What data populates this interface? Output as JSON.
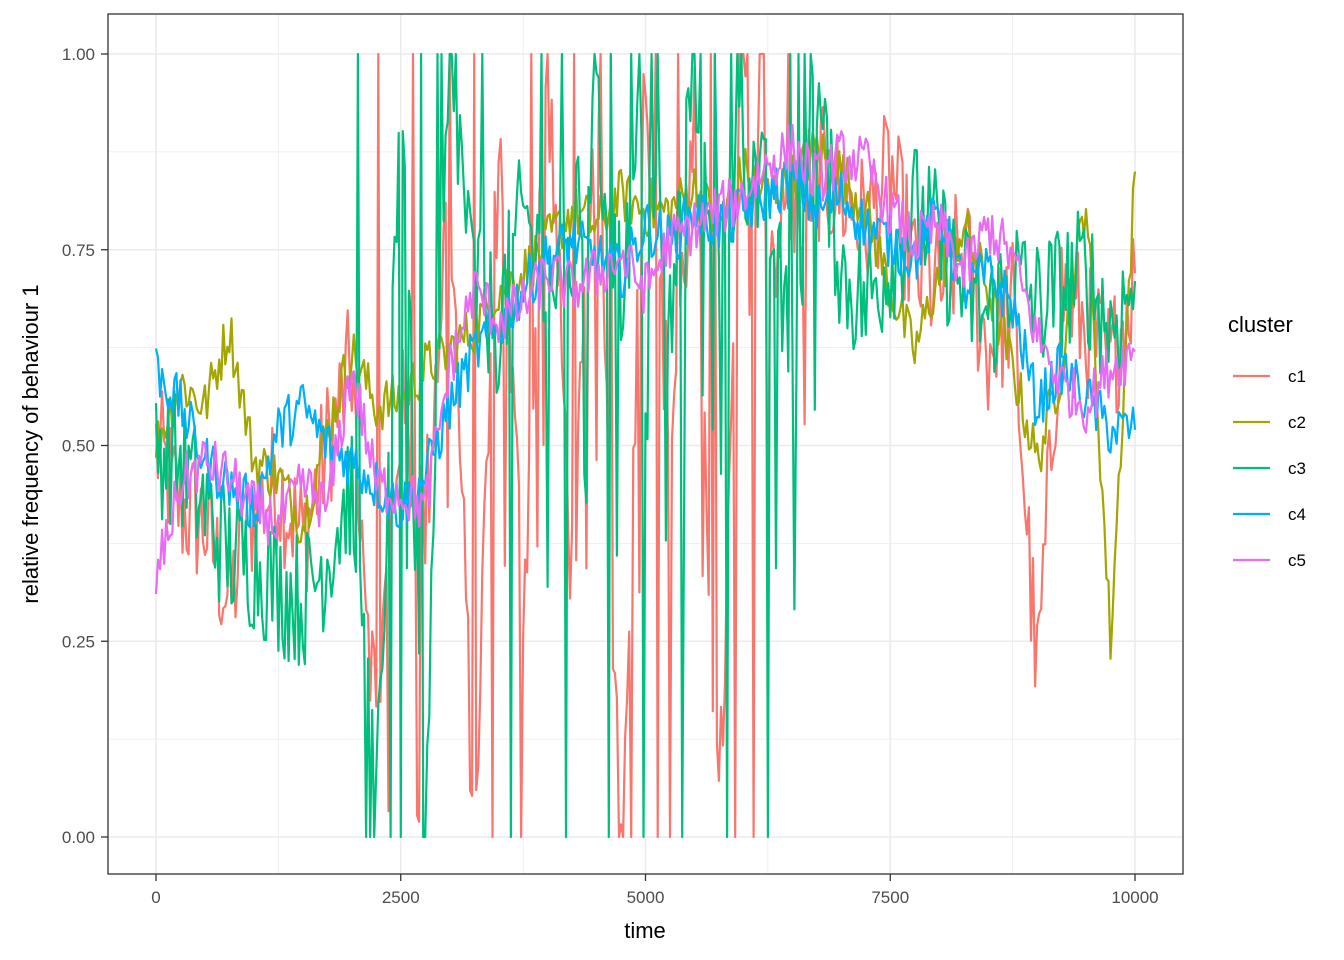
{
  "chart_data": {
    "type": "line",
    "title": "",
    "xlabel": "time",
    "ylabel": "relative frequency of behaviour 1",
    "xlim": [
      -500,
      10500
    ],
    "ylim": [
      -0.05,
      1.05
    ],
    "x_ticks": [
      0,
      2500,
      5000,
      7500,
      10000
    ],
    "x_tick_labels": [
      "0",
      "2500",
      "5000",
      "7500",
      "10000"
    ],
    "y_ticks": [
      0,
      0.25,
      0.5,
      0.75,
      1.0
    ],
    "y_tick_labels": [
      "0.00",
      "0.25",
      "0.50",
      "0.75",
      "1.00"
    ],
    "grid": true,
    "legend_position": "right",
    "legend_title": "cluster",
    "x": [
      0,
      250,
      500,
      750,
      1000,
      1250,
      1500,
      1750,
      2000,
      2250,
      2500,
      2750,
      3000,
      3250,
      3500,
      3750,
      4000,
      4250,
      4500,
      4750,
      5000,
      5250,
      5500,
      5750,
      6000,
      6250,
      6500,
      6750,
      7000,
      7250,
      7500,
      7750,
      8000,
      8250,
      8500,
      8750,
      9000,
      9250,
      9500,
      9750,
      10000
    ],
    "series": [
      {
        "name": "c1",
        "color": "#F8766D",
        "values": [
          0.5,
          0.42,
          0.4,
          0.3,
          0.42,
          0.45,
          0.38,
          0.5,
          0.6,
          0.15,
          0.55,
          0.4,
          0.85,
          0.0,
          0.9,
          0.3,
          1.0,
          0.33,
          0.9,
          0.0,
          1.0,
          0.5,
          0.9,
          0.0,
          1.0,
          0.75,
          0.8,
          0.85,
          0.82,
          0.78,
          0.85,
          0.72,
          0.7,
          0.75,
          0.62,
          0.68,
          0.2,
          0.7,
          0.65,
          0.6,
          0.72
        ]
      },
      {
        "name": "c2",
        "color": "#A3A500",
        "values": [
          0.5,
          0.58,
          0.55,
          0.65,
          0.48,
          0.46,
          0.4,
          0.52,
          0.62,
          0.55,
          0.56,
          0.6,
          0.62,
          0.65,
          0.7,
          0.72,
          0.76,
          0.8,
          0.78,
          0.82,
          0.8,
          0.8,
          0.83,
          0.78,
          0.85,
          0.82,
          0.84,
          0.88,
          0.85,
          0.8,
          0.7,
          0.62,
          0.72,
          0.78,
          0.7,
          0.6,
          0.48,
          0.6,
          0.82,
          0.25,
          0.85
        ]
      },
      {
        "name": "c3",
        "color": "#00BF7D",
        "values": [
          0.5,
          0.48,
          0.42,
          0.36,
          0.35,
          0.32,
          0.3,
          0.36,
          0.45,
          0.0,
          1.0,
          0.0,
          1.0,
          0.7,
          0.65,
          0.8,
          0.7,
          0.75,
          0.9,
          0.7,
          0.95,
          0.65,
          1.0,
          0.75,
          0.88,
          0.8,
          0.6,
          0.95,
          0.72,
          0.68,
          0.74,
          0.8,
          0.76,
          0.7,
          0.66,
          0.72,
          0.68,
          0.7,
          0.72,
          0.65,
          0.71
        ]
      },
      {
        "name": "c4",
        "color": "#00B0F6",
        "values": [
          0.6,
          0.55,
          0.48,
          0.45,
          0.42,
          0.52,
          0.55,
          0.5,
          0.48,
          0.45,
          0.42,
          0.46,
          0.55,
          0.62,
          0.65,
          0.7,
          0.74,
          0.76,
          0.74,
          0.72,
          0.78,
          0.76,
          0.8,
          0.78,
          0.8,
          0.82,
          0.84,
          0.8,
          0.82,
          0.78,
          0.76,
          0.74,
          0.8,
          0.7,
          0.72,
          0.68,
          0.55,
          0.6,
          0.56,
          0.52,
          0.52
        ]
      },
      {
        "name": "c5",
        "color": "#E76BF3",
        "values": [
          0.33,
          0.45,
          0.48,
          0.46,
          0.42,
          0.4,
          0.45,
          0.42,
          0.6,
          0.45,
          0.44,
          0.42,
          0.6,
          0.7,
          0.66,
          0.68,
          0.72,
          0.7,
          0.72,
          0.74,
          0.7,
          0.76,
          0.78,
          0.8,
          0.82,
          0.86,
          0.88,
          0.84,
          0.87,
          0.86,
          0.8,
          0.76,
          0.78,
          0.72,
          0.78,
          0.74,
          0.64,
          0.58,
          0.55,
          0.6,
          0.62
        ]
      }
    ]
  },
  "axes": {
    "x_title": "time",
    "y_title": "relative frequency of behaviour 1"
  },
  "legend": {
    "title": "cluster",
    "items": [
      {
        "label": "c1",
        "color": "#F8766D"
      },
      {
        "label": "c2",
        "color": "#A3A500"
      },
      {
        "label": "c3",
        "color": "#00BF7D"
      },
      {
        "label": "c4",
        "color": "#00B0F6"
      },
      {
        "label": "c5",
        "color": "#E76BF3"
      }
    ]
  }
}
